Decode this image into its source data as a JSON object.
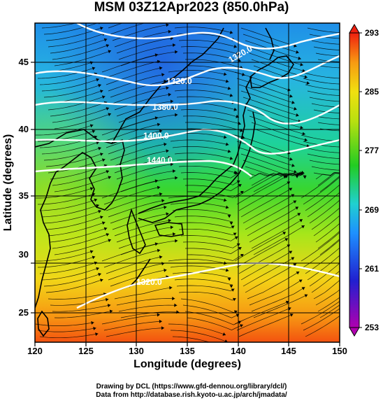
{
  "title": "MSM 03Z12Apr2023 (850.0hPa)",
  "xlabel": "Longitude (degrees)",
  "ylabel": "Latitude  (degrees)",
  "x_ticks": [
    "120",
    "125",
    "130",
    "135",
    "140",
    "145",
    "150"
  ],
  "y_ticks": [
    "25",
    "30",
    "35",
    "40",
    "45"
  ],
  "colorbar_ticks": [
    "253",
    "261",
    "269",
    "277",
    "285",
    "293"
  ],
  "contour_labels": [
    "1320.0",
    "1320.0",
    "1380.0",
    "1400.0",
    "1440.0",
    "1320.0"
  ],
  "credits": [
    "Drawing by DCL (https://www.gfd-dennou.org/library/dcl/)",
    "Data from http://database.rish.kyoto-u.ac.jp/arch/jmadata/"
  ],
  "map_extent": {
    "lon": [
      120,
      150
    ],
    "lat": [
      22.5,
      48
    ]
  },
  "colorbar_range": [
    253,
    293
  ],
  "colors": {
    "cold": "#b000b0",
    "cool": "#1e90ff",
    "mid": "#22cc22",
    "warm": "#e8e800",
    "hot": "#ff3300"
  }
}
